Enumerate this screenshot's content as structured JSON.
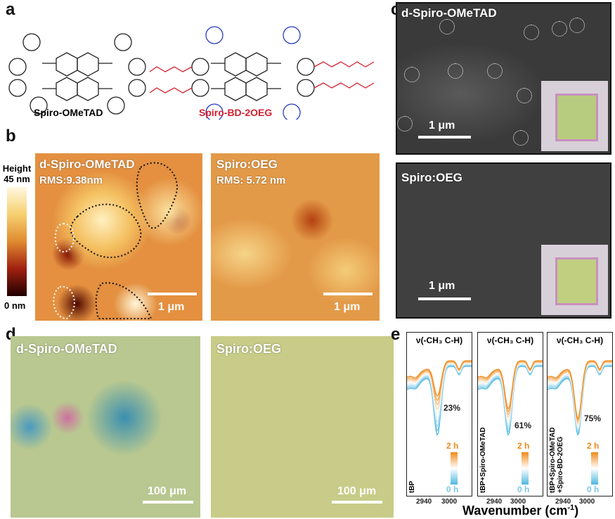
{
  "panels": {
    "a": "a",
    "b": "b",
    "c": "c",
    "d": "d",
    "e": "e"
  },
  "a": {
    "mol1": "Spiro-OMeTAD",
    "mol2": "Spiro-BD-2OEG",
    "mol2_color": "#d42030"
  },
  "b": {
    "colorbar_title": "Height",
    "colorbar_max": "45 nm",
    "colorbar_min": "0 nm",
    "left_title": "d-Spiro-OMeTAD",
    "left_rms": "RMS:9.38nm",
    "right_title": "Spiro:OEG",
    "right_rms": "RMS: 5.72 nm",
    "scale": "1 μm"
  },
  "c": {
    "top_title": "d-Spiro-OMeTAD",
    "bottom_title": "Spiro:OEG",
    "scale": "1 μm"
  },
  "d": {
    "left_title": "d-Spiro-OMeTAD",
    "right_title": "Spiro:OEG",
    "scale": "100 μm"
  },
  "chart_data": {
    "type": "line",
    "xlabel": "Wavenumber (cm-1)",
    "xlabel_main": "Wavenumber (cm",
    "xlabel_sup": "-1",
    "xlabel_close": ")",
    "xlim": [
      2880,
      3060
    ],
    "xticks": [
      "2940",
      "3000"
    ],
    "legend_top": "2 h",
    "legend_bottom": "0 h",
    "colors": {
      "start": "#4fb8e0",
      "end": "#f08a1c"
    },
    "subplots": [
      {
        "title": "ν(-CH₃ C-H)",
        "sample": "tBP",
        "sample2": "",
        "change": "23%",
        "dip_center": 2965,
        "dip_depth_0h": 1.0,
        "dip_depth_2h": 0.5
      },
      {
        "title": "ν(-CH₃ C-H)",
        "sample": "tBP+Spiro-OMeTAD",
        "sample2": "",
        "change": "61%",
        "dip_center": 2965,
        "dip_depth_0h": 1.0,
        "dip_depth_2h": 0.7
      },
      {
        "title": "ν(-CH₃ C-H)",
        "sample": "tBP+Spiro-OMeTAD",
        "sample2": "+Spiro-BD-2OEG",
        "change": "75%",
        "dip_center": 2965,
        "dip_depth_0h": 1.0,
        "dip_depth_2h": 0.85
      }
    ]
  }
}
